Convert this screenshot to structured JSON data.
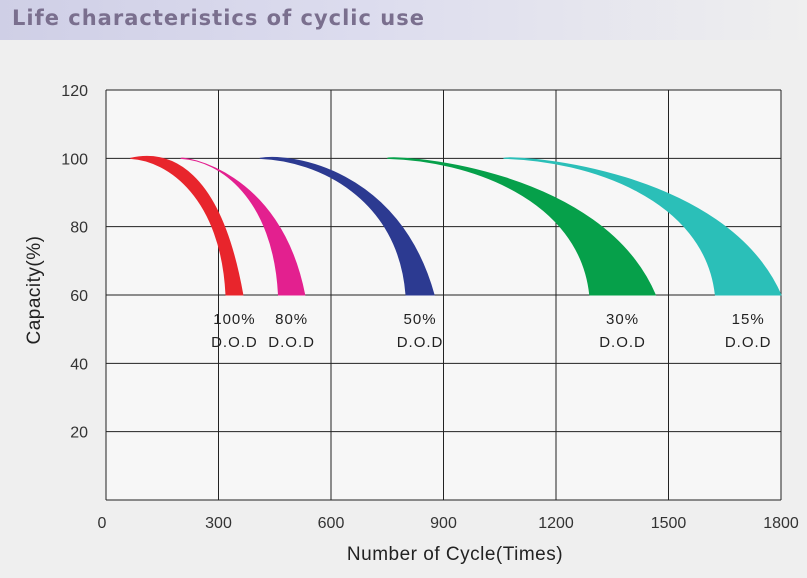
{
  "header": {
    "title": "Life characteristics of cyclic use"
  },
  "chart_data": {
    "type": "area",
    "xlabel": "Number of Cycle(Times)",
    "ylabel": "Capacity(%)",
    "xlim": [
      0,
      1800
    ],
    "ylim": [
      0,
      120
    ],
    "x_ticks": [
      "0",
      "300",
      "600",
      "900",
      "1200",
      "1500",
      "1800"
    ],
    "y_ticks": [
      "20",
      "40",
      "60",
      "80",
      "100",
      "120"
    ],
    "grid": true,
    "series": [
      {
        "label_line1": "100%",
        "label_line2": "D.O.D",
        "color": "#e8252c",
        "start_x": 65,
        "peak_x": 170,
        "peak_y": 102,
        "end_x_inner": 320,
        "end_x_outer": 365
      },
      {
        "label_line1": "80%",
        "label_line2": "D.O.D",
        "color": "#e3208f",
        "start_x": 200,
        "peak_x": 200,
        "peak_y": 100,
        "end_x_inner": 460,
        "end_x_outer": 530
      },
      {
        "label_line1": "50%",
        "label_line2": "D.O.D",
        "color": "#2c3a91",
        "start_x": 410,
        "peak_x": 490,
        "peak_y": 101,
        "end_x_inner": 800,
        "end_x_outer": 875
      },
      {
        "label_line1": "30%",
        "label_line2": "D.O.D",
        "color": "#06a04a",
        "start_x": 750,
        "peak_x": 780,
        "peak_y": 100.5,
        "end_x_inner": 1290,
        "end_x_outer": 1465
      },
      {
        "label_line1": "15%",
        "label_line2": "D.O.D",
        "color": "#2bbfb8",
        "start_x": 1060,
        "peak_x": 1090,
        "peak_y": 100.5,
        "end_x_inner": 1625,
        "end_x_outer": 1800
      }
    ]
  }
}
